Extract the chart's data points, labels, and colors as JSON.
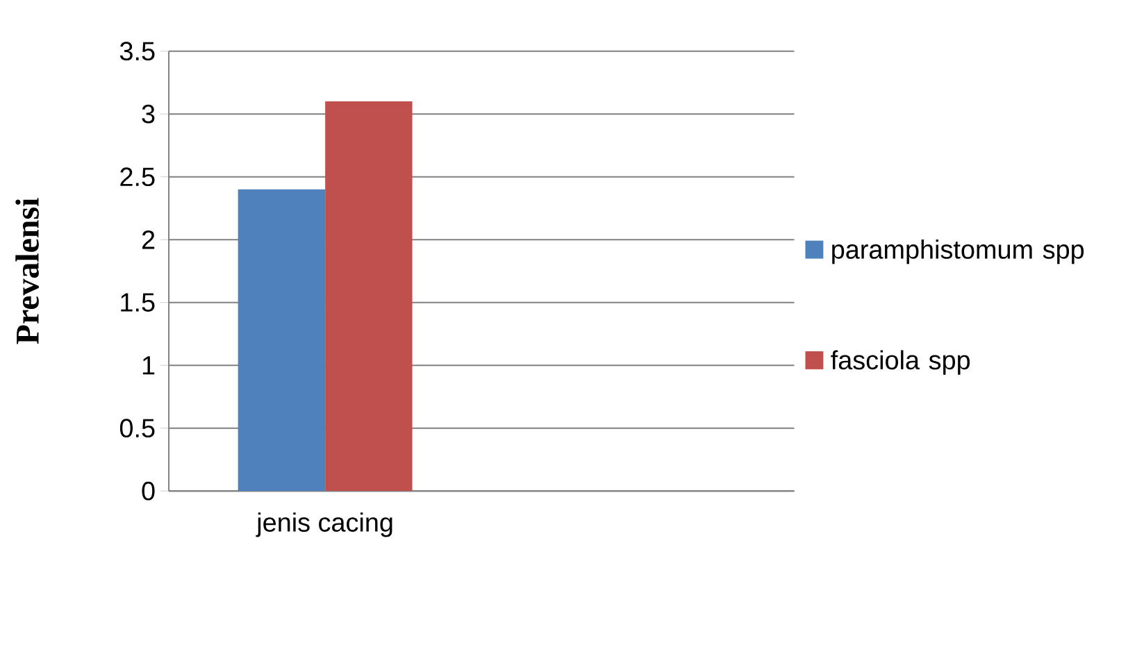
{
  "chart_data": {
    "type": "bar",
    "ylabel": "Prevalensi",
    "categories": [
      "jenis cacing",
      null
    ],
    "series": [
      {
        "name": "paramphistomum spp",
        "color": "#4f81bd",
        "values": [
          2.4,
          null
        ]
      },
      {
        "name": "fasciola spp",
        "color": "#c0504d",
        "values": [
          3.1,
          null
        ]
      }
    ],
    "ylim": [
      0,
      3.5
    ],
    "yticks": [
      0,
      0.5,
      1,
      1.5,
      2,
      2.5,
      3,
      3.5
    ],
    "grid": "y",
    "legend": "right"
  }
}
